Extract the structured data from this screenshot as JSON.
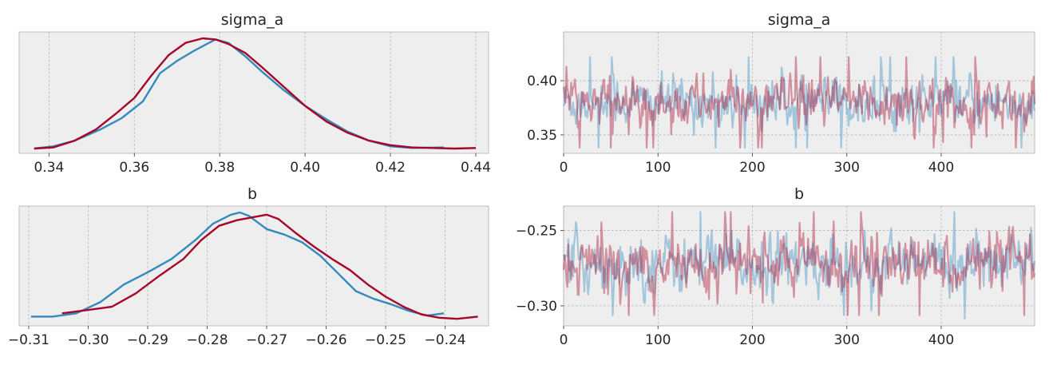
{
  "colors": {
    "chain0": "#348ABD",
    "chain1": "#A60628",
    "panel_bg": "#EEEEEE",
    "frame": "#BCBCBC"
  },
  "chart_data": [
    {
      "type": "line",
      "kind": "density",
      "title": "sigma_a",
      "xlim": [
        0.333,
        0.443
      ],
      "xticks": [
        0.34,
        0.36,
        0.38,
        0.4,
        0.42,
        0.44
      ],
      "xtick_labels": [
        "0.34",
        "0.36",
        "0.38",
        "0.40",
        "0.42",
        "0.44"
      ],
      "grid": true,
      "series": [
        {
          "color": "#348ABD",
          "x": [
            0.3365,
            0.341,
            0.346,
            0.352,
            0.357,
            0.362,
            0.366,
            0.37,
            0.374,
            0.377,
            0.379,
            0.382,
            0.386,
            0.39,
            0.395,
            0.4,
            0.405,
            0.41,
            0.415,
            0.42,
            0.425,
            0.4325
          ],
          "y": [
            0.0,
            0.02,
            0.07,
            0.17,
            0.27,
            0.42,
            0.67,
            0.78,
            0.87,
            0.93,
            0.97,
            0.94,
            0.82,
            0.68,
            0.52,
            0.38,
            0.26,
            0.15,
            0.07,
            0.02,
            0.005,
            0.01
          ]
        },
        {
          "color": "#A60628",
          "x": [
            0.3365,
            0.341,
            0.346,
            0.351,
            0.356,
            0.36,
            0.364,
            0.368,
            0.372,
            0.376,
            0.379,
            0.382,
            0.386,
            0.39,
            0.395,
            0.4,
            0.405,
            0.41,
            0.415,
            0.42,
            0.425,
            0.43,
            0.435,
            0.44
          ],
          "y": [
            0.0,
            0.01,
            0.07,
            0.17,
            0.32,
            0.45,
            0.65,
            0.83,
            0.94,
            0.98,
            0.97,
            0.93,
            0.85,
            0.72,
            0.55,
            0.38,
            0.24,
            0.14,
            0.07,
            0.03,
            0.01,
            0.005,
            0.0,
            0.005
          ]
        }
      ]
    },
    {
      "type": "line",
      "kind": "trace",
      "title": "sigma_a",
      "xlim": [
        0,
        499
      ],
      "ylim": [
        0.333,
        0.445
      ],
      "xticks": [
        0,
        100,
        200,
        300,
        400
      ],
      "xtick_labels": [
        "0",
        "100",
        "200",
        "300",
        "400"
      ],
      "yticks": [
        0.35,
        0.4
      ],
      "ytick_labels": [
        "0.35",
        "0.40"
      ],
      "grid": true,
      "trace_summary": {
        "n_draws": 500,
        "center": 0.38,
        "spread": 0.011,
        "min_approx": 0.335,
        "max_approx": 0.44
      },
      "series": [
        {
          "color": "#348ABD",
          "alpha": 0.4
        },
        {
          "color": "#A60628",
          "alpha": 0.4
        }
      ]
    },
    {
      "type": "line",
      "kind": "density",
      "title": "b",
      "xlim": [
        -0.3116,
        -0.2327
      ],
      "xticks": [
        -0.31,
        -0.3,
        -0.29,
        -0.28,
        -0.27,
        -0.26,
        -0.25,
        -0.24
      ],
      "xtick_labels": [
        "−0.31",
        "−0.30",
        "−0.29",
        "−0.28",
        "−0.27",
        "−0.26",
        "−0.25",
        "−0.24"
      ],
      "grid": true,
      "series": [
        {
          "color": "#348ABD",
          "x": [
            -0.3096,
            -0.306,
            -0.302,
            -0.298,
            -0.294,
            -0.29,
            -0.286,
            -0.282,
            -0.279,
            -0.276,
            -0.2745,
            -0.273,
            -0.27,
            -0.267,
            -0.264,
            -0.261,
            -0.258,
            -0.255,
            -0.252,
            -0.249,
            -0.246,
            -0.243,
            -0.2402
          ],
          "y": [
            0.04,
            0.04,
            0.07,
            0.17,
            0.33,
            0.44,
            0.56,
            0.73,
            0.88,
            0.96,
            0.98,
            0.95,
            0.83,
            0.78,
            0.71,
            0.59,
            0.43,
            0.27,
            0.2,
            0.15,
            0.09,
            0.05,
            0.07
          ]
        },
        {
          "color": "#A60628",
          "x": [
            -0.3044,
            -0.3,
            -0.296,
            -0.292,
            -0.288,
            -0.284,
            -0.281,
            -0.278,
            -0.275,
            -0.272,
            -0.27,
            -0.268,
            -0.265,
            -0.262,
            -0.259,
            -0.256,
            -0.253,
            -0.25,
            -0.247,
            -0.244,
            -0.241,
            -0.238,
            -0.2345
          ],
          "y": [
            0.07,
            0.1,
            0.13,
            0.25,
            0.41,
            0.56,
            0.73,
            0.86,
            0.91,
            0.94,
            0.96,
            0.92,
            0.79,
            0.67,
            0.56,
            0.46,
            0.33,
            0.22,
            0.13,
            0.06,
            0.03,
            0.02,
            0.04
          ]
        }
      ]
    },
    {
      "type": "line",
      "kind": "trace",
      "title": "b",
      "xlim": [
        0,
        499
      ],
      "ylim": [
        -0.3133,
        -0.2338
      ],
      "xticks": [
        0,
        100,
        200,
        300,
        400
      ],
      "xtick_labels": [
        "0",
        "100",
        "200",
        "300",
        "400"
      ],
      "yticks": [
        -0.25,
        -0.3
      ],
      "ytick_labels": [
        "−0.25",
        "−0.30"
      ],
      "grid": true,
      "trace_summary": {
        "n_draws": 500,
        "center": -0.272,
        "spread": 0.009,
        "min_approx": -0.31,
        "max_approx": -0.236
      },
      "series": [
        {
          "color": "#348ABD",
          "alpha": 0.4
        },
        {
          "color": "#A60628",
          "alpha": 0.4
        }
      ]
    }
  ]
}
